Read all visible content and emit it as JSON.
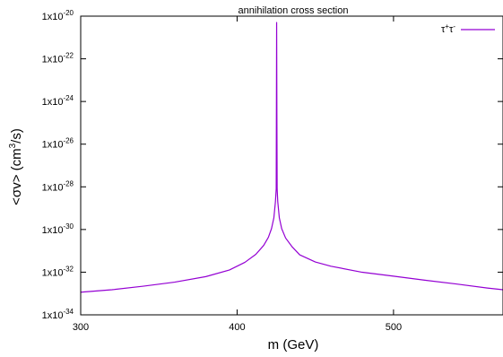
{
  "chart_data": {
    "type": "line",
    "title": "annihilation cross section",
    "xlabel": "m (GeV)",
    "ylabel": "<σv> (cm³/s)",
    "ylabel_parts": {
      "prefix": "<σv> (cm",
      "sup": "3",
      "suffix": "/s)"
    },
    "xlim": [
      300,
      570
    ],
    "ylim": [
      1e-34,
      1e-20
    ],
    "yscale": "log",
    "grid": false,
    "legend_position": "top-right",
    "x_ticks": [
      {
        "value": 300,
        "label": "300"
      },
      {
        "value": 400,
        "label": "400"
      },
      {
        "value": 500,
        "label": "500"
      }
    ],
    "y_ticks": [
      {
        "exp": -34,
        "base": "1x10",
        "exponent": "-34"
      },
      {
        "exp": -32,
        "base": "1x10",
        "exponent": "-32"
      },
      {
        "exp": -30,
        "base": "1x10",
        "exponent": "-30"
      },
      {
        "exp": -28,
        "base": "1x10",
        "exponent": "-28"
      },
      {
        "exp": -26,
        "base": "1x10",
        "exponent": "-26"
      },
      {
        "exp": -24,
        "base": "1x10",
        "exponent": "-24"
      },
      {
        "exp": -22,
        "base": "1x10",
        "exponent": "-22"
      },
      {
        "exp": -20,
        "base": "1x10",
        "exponent": "-20"
      }
    ],
    "series": [
      {
        "name": "τ⁺τ⁻",
        "name_parts": {
          "a": "τ",
          "a_sup": "+",
          "b": "τ",
          "b_sup": "-"
        },
        "color": "#9400d3",
        "points": [
          [
            300,
            1.15e-33
          ],
          [
            320,
            1.5e-33
          ],
          [
            340,
            2.2e-33
          ],
          [
            360,
            3.4e-33
          ],
          [
            380,
            6.2e-33
          ],
          [
            395,
            1.26e-32
          ],
          [
            405,
            2.9e-32
          ],
          [
            412,
            6.9e-32
          ],
          [
            417,
            1.8e-31
          ],
          [
            420,
            4.3e-31
          ],
          [
            422,
            1.1e-30
          ],
          [
            423.5,
            3.5e-30
          ],
          [
            424.5,
            2e-29
          ],
          [
            425,
            8e-29
          ],
          [
            425.12,
            1e-25
          ],
          [
            425.28,
            5e-21
          ],
          [
            425.45,
            1e-25
          ],
          [
            425.6,
            8e-29
          ],
          [
            426,
            2e-29
          ],
          [
            427,
            3.5e-30
          ],
          [
            428.5,
            1.1e-30
          ],
          [
            431,
            4e-31
          ],
          [
            435,
            1.6e-31
          ],
          [
            440,
            6.5e-32
          ],
          [
            450,
            3e-32
          ],
          [
            460,
            1.9e-32
          ],
          [
            480,
            9.9e-33
          ],
          [
            500,
            6.5e-33
          ],
          [
            520,
            4.2e-33
          ],
          [
            540,
            2.8e-33
          ],
          [
            560,
            1.8e-33
          ],
          [
            570,
            1.5e-33
          ]
        ]
      }
    ]
  }
}
